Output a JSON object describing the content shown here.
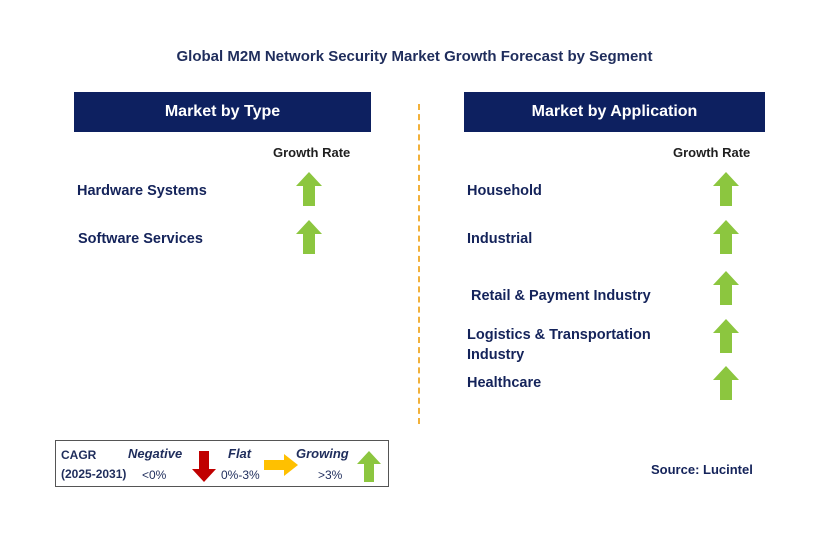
{
  "title": "Global M2M Network Security Market Growth Forecast by Segment",
  "left_panel": {
    "header": "Market by Type",
    "column_header": "Growth Rate",
    "items": [
      {
        "label": "Hardware Systems",
        "trend": "growing"
      },
      {
        "label": "Software Services",
        "trend": "growing"
      }
    ]
  },
  "right_panel": {
    "header": "Market by Application",
    "column_header": "Growth Rate",
    "items": [
      {
        "label": "Household",
        "trend": "growing"
      },
      {
        "label": "Industrial",
        "trend": "growing"
      },
      {
        "label": "Retail & Payment Industry",
        "trend": "growing"
      },
      {
        "label": "Logistics & Transportation Industry",
        "trend": "growing"
      },
      {
        "label": "Healthcare",
        "trend": "growing"
      }
    ]
  },
  "legend": {
    "cagr_label": "CAGR",
    "period": "(2025-2031)",
    "negative_label": "Negative",
    "negative_range": "<0%",
    "flat_label": "Flat",
    "flat_range": "0%-3%",
    "growing_label": "Growing",
    "growing_range": ">3%"
  },
  "source": "Source: Lucintel",
  "colors": {
    "header_bg": "#0d2060",
    "growing_arrow": "#8cc63f",
    "negative_arrow": "#c00000",
    "flat_arrow": "#ffc000",
    "divider": "#f2b13a"
  }
}
